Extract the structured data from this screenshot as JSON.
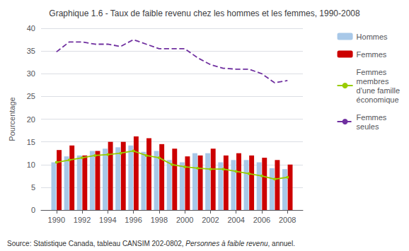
{
  "chart_data": {
    "type": "bar",
    "title": "Graphique 1.6 - Taux de faible revenu chez les hommes et les femmes, 1990-2008",
    "ylabel": "Pourcentage",
    "x": [
      1990,
      1991,
      1992,
      1993,
      1994,
      1995,
      1996,
      1997,
      1998,
      1999,
      2000,
      2001,
      2002,
      2003,
      2004,
      2005,
      2006,
      2007,
      2008
    ],
    "series": [
      {
        "name": "Hommes",
        "type": "bar",
        "color": "#A8C8E8",
        "values": [
          10.5,
          11.8,
          12.0,
          13.0,
          13.5,
          13.8,
          14.2,
          12.8,
          13.0,
          11.0,
          10.5,
          12.5,
          12.5,
          10.5,
          11.0,
          11.0,
          10.5,
          9.2,
          9.0
        ]
      },
      {
        "name": "Femmes",
        "type": "bar",
        "color": "#CC0000",
        "values": [
          13.2,
          14.2,
          12.0,
          13.0,
          15.0,
          15.0,
          16.2,
          15.8,
          14.5,
          13.5,
          11.8,
          12.0,
          13.5,
          12.0,
          12.5,
          12.0,
          11.5,
          11.0,
          10.0
        ]
      },
      {
        "name": "Femmes\nmembres\nd'une famille\néconomique",
        "type": "line",
        "color": "#99CC00",
        "marker": "circle",
        "line_style": "solid",
        "values": [
          10.5,
          11.0,
          11.5,
          12.0,
          12.2,
          12.5,
          13.0,
          12.0,
          11.5,
          10.0,
          9.5,
          9.2,
          9.0,
          9.0,
          8.5,
          8.0,
          7.5,
          6.8,
          7.2
        ]
      },
      {
        "name": "Femmes\nseules",
        "type": "line",
        "color": "#7030A0",
        "line_style": "dashed",
        "values": [
          34.8,
          37.0,
          37.0,
          36.5,
          36.5,
          36.0,
          37.5,
          36.5,
          35.5,
          35.5,
          35.5,
          33.5,
          32.0,
          31.2,
          31.0,
          31.0,
          30.0,
          28.0,
          28.5
        ]
      }
    ],
    "xlim": [
      1988.8,
      2009.2
    ],
    "xticks": [
      1990,
      1992,
      1994,
      1996,
      1998,
      2000,
      2002,
      2004,
      2006,
      2008
    ],
    "ylim": [
      0,
      40
    ],
    "yticks": [
      0,
      5,
      10,
      15,
      20,
      25,
      30,
      35,
      40
    ],
    "grid": true,
    "legend": "right",
    "annotations": [
      "Source: Statistique Canada, tableau CANSIM 202-0802, ",
      "Personnes à faible revenu",
      ", annuel."
    ]
  }
}
